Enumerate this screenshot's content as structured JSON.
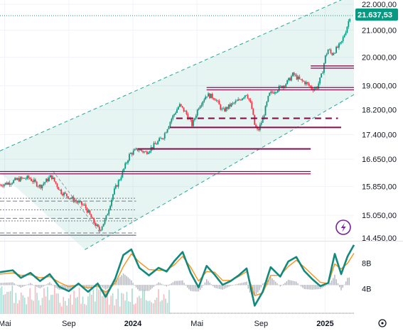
{
  "chart_data": {
    "type": "candlestick",
    "y_axis": {
      "ticks": [
        "22.000,00",
        "21.000,00",
        "20.000,00",
        "19.000,00",
        "18.200,00",
        "17.400,00",
        "16.650,00",
        "15.850,00",
        "15.050,00",
        "14.450,00"
      ],
      "tick_values": [
        22000,
        21000,
        20000,
        19000,
        18200,
        17400,
        16650,
        15850,
        15050,
        14450
      ],
      "scale": "log"
    },
    "last_price": {
      "label": "21.637,53",
      "value": 21637.53,
      "color": "#089981"
    },
    "x_axis": {
      "labels": [
        "Mai",
        "Sep",
        "2024",
        "Mai",
        "Sep",
        "2025"
      ],
      "bold": [
        false,
        false,
        true,
        false,
        false,
        true
      ],
      "time_positions": [
        0,
        4,
        8,
        12,
        16,
        20
      ]
    },
    "time_range": [
      -0.3,
      21.8
    ],
    "price_path": [
      [
        -0.3,
        15900
      ],
      [
        0.2,
        15950
      ],
      [
        0.8,
        16050
      ],
      [
        1.5,
        16100
      ],
      [
        2.2,
        15850
      ],
      [
        2.9,
        16150
      ],
      [
        3.5,
        15700
      ],
      [
        4.2,
        15500
      ],
      [
        5.0,
        15300
      ],
      [
        5.5,
        14900
      ],
      [
        5.9,
        14650
      ],
      [
        6.3,
        14950
      ],
      [
        6.8,
        15700
      ],
      [
        7.3,
        16200
      ],
      [
        7.8,
        16800
      ],
      [
        8.3,
        16950
      ],
      [
        8.8,
        16850
      ],
      [
        9.4,
        17100
      ],
      [
        9.9,
        17350
      ],
      [
        10.4,
        17900
      ],
      [
        10.9,
        18350
      ],
      [
        11.3,
        18100
      ],
      [
        11.7,
        17700
      ],
      [
        12.1,
        18300
      ],
      [
        12.6,
        18700
      ],
      [
        13.1,
        18600
      ],
      [
        13.6,
        18150
      ],
      [
        14.1,
        18350
      ],
      [
        14.6,
        18500
      ],
      [
        15.1,
        18750
      ],
      [
        15.4,
        18300
      ],
      [
        15.6,
        17700
      ],
      [
        15.8,
        17500
      ],
      [
        16.1,
        17900
      ],
      [
        16.5,
        18700
      ],
      [
        16.9,
        18850
      ],
      [
        17.2,
        18950
      ],
      [
        17.6,
        19100
      ],
      [
        18.0,
        19400
      ],
      [
        18.4,
        19200
      ],
      [
        18.8,
        19100
      ],
      [
        19.2,
        18900
      ],
      [
        19.5,
        18950
      ],
      [
        19.8,
        19400
      ],
      [
        20.0,
        20000
      ],
      [
        20.2,
        20300
      ],
      [
        20.4,
        20100
      ],
      [
        20.7,
        20300
      ],
      [
        21.0,
        20500
      ],
      [
        21.3,
        21000
      ],
      [
        21.6,
        21637.53
      ]
    ],
    "channel": {
      "upper": [
        [
          -0.3,
          16900
        ],
        [
          21.8,
          22400
        ]
      ],
      "lower": [
        [
          5.0,
          14150
        ],
        [
          21.8,
          18700
        ]
      ],
      "fill": "rgba(8,153,129,0.10)",
      "stroke": "#26a69a"
    },
    "horizontal_levels": [
      {
        "value": 16250,
        "t_from": -0.3,
        "t_to": 19.1,
        "style": "double"
      },
      {
        "value": 16960,
        "t_from": 8.3,
        "t_to": 19.1,
        "style": "solid"
      },
      {
        "value": 17630,
        "t_from": 10.3,
        "t_to": 21.0,
        "style": "solid"
      },
      {
        "value": 17920,
        "t_from": 10.7,
        "t_to": 20.8,
        "style": "dashed"
      },
      {
        "value": 18900,
        "t_from": 12.6,
        "t_to": 22.7,
        "style": "double"
      },
      {
        "value": 19650,
        "t_from": 19.1,
        "t_to": 24.2,
        "style": "double"
      }
    ],
    "grey_levels": [
      {
        "value": 15520,
        "t_from": -0.3,
        "t_to": 8.2
      },
      {
        "value": 15440,
        "t_from": -0.3,
        "t_to": 8.2
      },
      {
        "value": 15200,
        "t_from": -0.3,
        "t_to": 8.2
      },
      {
        "value": 14970,
        "t_from": -0.3,
        "t_to": 8.2
      },
      {
        "value": 14900,
        "t_from": -0.3,
        "t_to": 8.2
      },
      {
        "value": 14580,
        "t_from": -0.3,
        "t_to": 8.2
      }
    ],
    "oscillator": {
      "ticks": [
        "8B",
        "4B"
      ],
      "tick_values": [
        8,
        4
      ],
      "range": [
        0,
        11
      ],
      "fast": [
        [
          -0.3,
          6.6
        ],
        [
          0.5,
          6.9
        ],
        [
          1.0,
          5.7
        ],
        [
          1.6,
          6.5
        ],
        [
          2.2,
          5.2
        ],
        [
          2.8,
          6.3
        ],
        [
          3.4,
          4.3
        ],
        [
          4.0,
          3.6
        ],
        [
          4.6,
          4.8
        ],
        [
          5.2,
          3.5
        ],
        [
          5.8,
          4.8
        ],
        [
          6.3,
          2.7
        ],
        [
          6.9,
          5.6
        ],
        [
          7.4,
          9.3
        ],
        [
          7.9,
          10.2
        ],
        [
          8.4,
          7.3
        ],
        [
          9.0,
          6.1
        ],
        [
          9.6,
          7.3
        ],
        [
          10.1,
          6.7
        ],
        [
          10.6,
          8.4
        ],
        [
          11.1,
          9.8
        ],
        [
          11.6,
          6.5
        ],
        [
          12.1,
          4.2
        ],
        [
          12.6,
          7.6
        ],
        [
          13.1,
          6.2
        ],
        [
          13.6,
          4.6
        ],
        [
          14.1,
          5.2
        ],
        [
          14.6,
          6.1
        ],
        [
          15.1,
          7.2
        ],
        [
          15.6,
          1.3
        ],
        [
          16.1,
          3.5
        ],
        [
          16.6,
          7.4
        ],
        [
          17.2,
          5.9
        ],
        [
          17.7,
          8.3
        ],
        [
          18.2,
          9.0
        ],
        [
          18.7,
          6.8
        ],
        [
          19.2,
          5.5
        ],
        [
          19.7,
          4.4
        ],
        [
          20.2,
          4.9
        ],
        [
          20.6,
          9.5
        ],
        [
          21.0,
          6.3
        ],
        [
          21.4,
          9.1
        ],
        [
          21.8,
          10.9
        ]
      ],
      "slow": [
        [
          -0.3,
          6.3
        ],
        [
          0.5,
          6.5
        ],
        [
          1.0,
          6.1
        ],
        [
          1.6,
          6.2
        ],
        [
          2.2,
          5.7
        ],
        [
          2.8,
          5.9
        ],
        [
          3.4,
          5.0
        ],
        [
          4.0,
          4.3
        ],
        [
          4.6,
          4.6
        ],
        [
          5.2,
          4.1
        ],
        [
          5.8,
          4.4
        ],
        [
          6.3,
          3.4
        ],
        [
          6.9,
          4.9
        ],
        [
          7.4,
          7.5
        ],
        [
          7.9,
          9.5
        ],
        [
          8.4,
          8.2
        ],
        [
          9.0,
          7.0
        ],
        [
          9.6,
          6.9
        ],
        [
          10.1,
          6.9
        ],
        [
          10.6,
          7.8
        ],
        [
          11.1,
          9.1
        ],
        [
          11.6,
          7.4
        ],
        [
          12.1,
          5.2
        ],
        [
          12.6,
          6.7
        ],
        [
          13.1,
          6.6
        ],
        [
          13.6,
          5.3
        ],
        [
          14.1,
          5.3
        ],
        [
          14.6,
          5.9
        ],
        [
          15.1,
          6.7
        ],
        [
          15.6,
          2.9
        ],
        [
          16.1,
          3.3
        ],
        [
          16.6,
          6.1
        ],
        [
          17.2,
          6.1
        ],
        [
          17.7,
          7.5
        ],
        [
          18.2,
          8.5
        ],
        [
          18.7,
          7.4
        ],
        [
          19.2,
          6.2
        ],
        [
          19.7,
          5.0
        ],
        [
          20.2,
          4.8
        ],
        [
          20.6,
          7.9
        ],
        [
          21.0,
          7.1
        ],
        [
          21.4,
          8.0
        ],
        [
          21.8,
          9.6
        ]
      ],
      "fast_color": "#11897d",
      "slow_color": "#f7931a"
    },
    "volume_profile": {
      "t_from": -0.3,
      "t_to": 10.3
    }
  },
  "icons": {
    "flash": "flash-icon",
    "settings": "gear-icon"
  },
  "colors": {
    "up": "#089981",
    "down": "#f23645",
    "level": "#880e4f",
    "grid": "#f0f3fa",
    "flash": "#7b1fa2"
  }
}
